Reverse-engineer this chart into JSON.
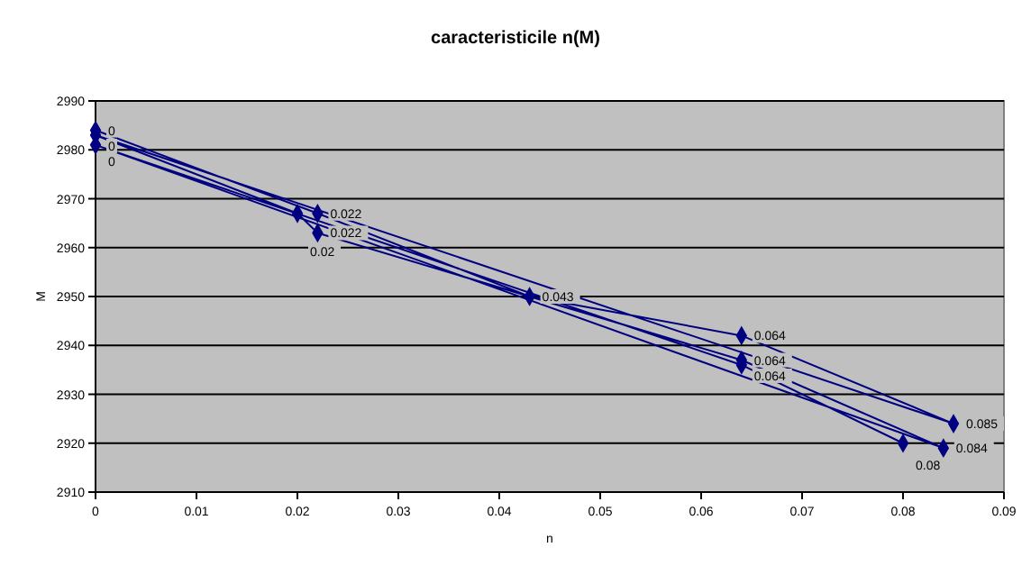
{
  "chart_data": {
    "type": "line",
    "title": "caracteristicile n(M)",
    "xlabel": "n",
    "ylabel": "M",
    "xlim": [
      0,
      0.09
    ],
    "xticks": [
      0,
      0.01,
      0.02,
      0.03,
      0.04,
      0.05,
      0.06,
      0.07,
      0.08,
      0.09
    ],
    "ylim": [
      2910,
      2990
    ],
    "yticks": [
      2910,
      2920,
      2930,
      2940,
      2950,
      2960,
      2970,
      2980,
      2990
    ],
    "grid": "y",
    "marker": "diamond",
    "line_style": "solid",
    "series": [
      {
        "color": "#000080",
        "x": [
          0,
          0.022,
          0.043,
          0.064,
          0.085,
          0,
          0.02,
          0.022,
          0.064,
          0.084,
          0,
          0.064,
          0.08
        ],
        "values": [
          2984,
          2967,
          2950,
          2942,
          2924,
          2983,
          2967,
          2963,
          2937,
          2919,
          2981,
          2936,
          2920
        ]
      }
    ],
    "annotations": [
      {
        "text": "0",
        "x": 0,
        "y": 2984
      },
      {
        "text": "0",
        "x": 0,
        "y": 2983
      },
      {
        "text": "0",
        "x": 0,
        "y": 2981
      },
      {
        "text": "0.02",
        "x": 0.02,
        "y": 2967
      },
      {
        "text": "0.022",
        "x": 0.022,
        "y": 2967
      },
      {
        "text": "0.022",
        "x": 0.022,
        "y": 2963
      },
      {
        "text": "0.043",
        "x": 0.043,
        "y": 2950
      },
      {
        "text": "0.064",
        "x": 0.064,
        "y": 2942
      },
      {
        "text": "0.064",
        "x": 0.064,
        "y": 2937
      },
      {
        "text": "0.064",
        "x": 0.064,
        "y": 2936
      },
      {
        "text": "0.08",
        "x": 0.08,
        "y": 2920
      },
      {
        "text": "0.084",
        "x": 0.084,
        "y": 2919
      },
      {
        "text": "0.085",
        "x": 0.085,
        "y": 2924
      }
    ]
  }
}
